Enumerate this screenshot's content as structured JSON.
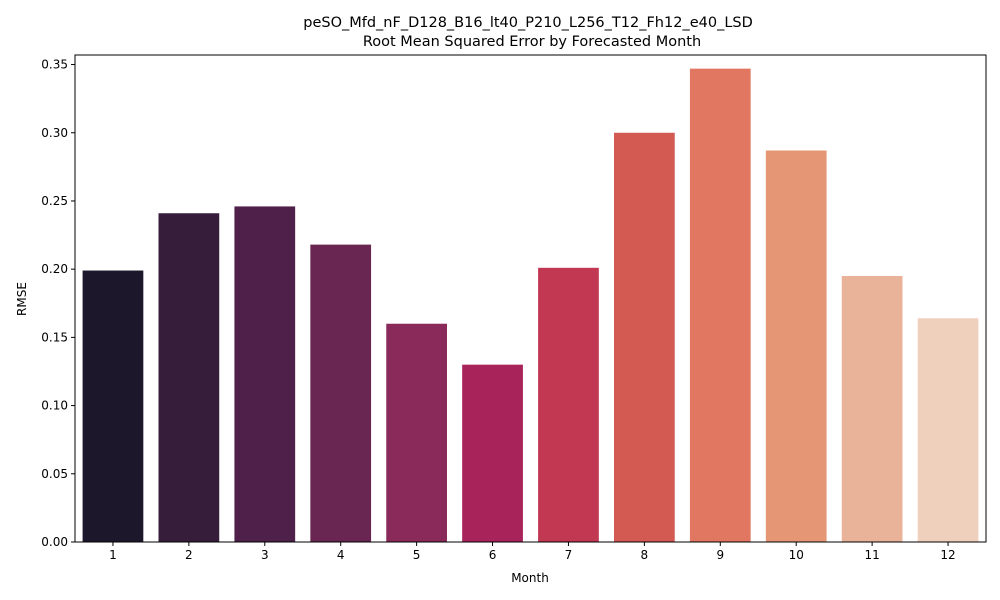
{
  "chart_data": {
    "type": "bar",
    "title_line1": "peSO_Mfd_nF_D128_B16_lt40_P210_L256_T12_Fh12_e40_LSD",
    "title_line2": "Root Mean Squared Error by Forecasted Month",
    "xlabel": "Month",
    "ylabel": "RMSE",
    "categories": [
      "1",
      "2",
      "3",
      "4",
      "5",
      "6",
      "7",
      "8",
      "9",
      "10",
      "11",
      "12"
    ],
    "values": [
      0.199,
      0.241,
      0.246,
      0.218,
      0.16,
      0.13,
      0.201,
      0.3,
      0.347,
      0.287,
      0.195,
      0.164
    ],
    "colors": [
      "#1c172b",
      "#361e3b",
      "#4f2049",
      "#6a2652",
      "#8a2a5a",
      "#a8235a",
      "#c23752",
      "#d35a53",
      "#e17760",
      "#e49675",
      "#e8b398",
      "#efd0bd"
    ],
    "ylim": [
      0,
      0.357
    ],
    "yticks": [
      0.0,
      0.05,
      0.1,
      0.15,
      0.2,
      0.25,
      0.3,
      0.35
    ],
    "ytick_labels": [
      "0.00",
      "0.05",
      "0.10",
      "0.15",
      "0.20",
      "0.25",
      "0.30",
      "0.35"
    ],
    "grid": false,
    "legend": "none"
  }
}
